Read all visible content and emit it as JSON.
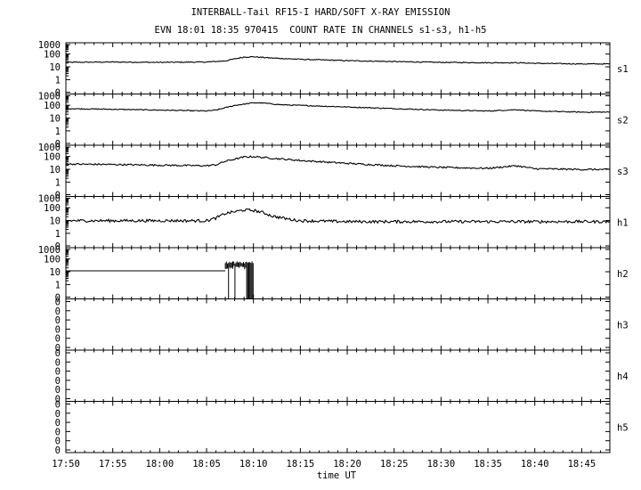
{
  "header": {
    "title": "INTERBALL-Tail RF15-I HARD/SOFT X-RAY EMISSION",
    "subtitle": "EVN 18:01 18:35 970415  COUNT RATE IN CHANNELS s1-s3, h1-h5"
  },
  "chart_data": {
    "type": "line",
    "title": "INTERBALL-Tail RF15-I HARD/SOFT X-RAY EMISSION",
    "subtitle": "EVN 18:01 18:35 970415  COUNT RATE IN CHANNELS s1-s3, h1-h5",
    "xlabel": "time UT",
    "x_ticks": [
      "17:50",
      "17:55",
      "18:00",
      "18:05",
      "18:10",
      "18:15",
      "18:20",
      "18:25",
      "18:30",
      "18:35",
      "18:40",
      "18:45"
    ],
    "x_range_minutes_ut": [
      "17:50",
      "18:48"
    ],
    "y_scale": "log",
    "y_ticks_log": [
      "1000",
      "100",
      "10",
      "1",
      "0"
    ],
    "y_ticks_zero": [
      "0",
      "0",
      "0",
      "0",
      "0",
      "0"
    ],
    "grid": false,
    "panels": [
      {
        "name": "s1",
        "mode": "log",
        "points": [
          [
            "17:50",
            30
          ],
          [
            "17:55",
            32
          ],
          [
            "18:00",
            30
          ],
          [
            "18:05",
            32
          ],
          [
            "18:07",
            40
          ],
          [
            "18:08",
            60
          ],
          [
            "18:09",
            85
          ],
          [
            "18:10",
            90
          ],
          [
            "18:12",
            70
          ],
          [
            "18:15",
            55
          ],
          [
            "18:20",
            42
          ],
          [
            "18:25",
            35
          ],
          [
            "18:30",
            30
          ],
          [
            "18:35",
            28
          ],
          [
            "18:38",
            28
          ],
          [
            "18:40",
            25
          ],
          [
            "18:45",
            22
          ],
          [
            "18:48",
            22
          ]
        ]
      },
      {
        "name": "s2",
        "mode": "log",
        "points": [
          [
            "17:50",
            80
          ],
          [
            "17:55",
            70
          ],
          [
            "18:00",
            60
          ],
          [
            "18:05",
            50
          ],
          [
            "18:06",
            60
          ],
          [
            "18:08",
            150
          ],
          [
            "18:10",
            250
          ],
          [
            "18:11",
            240
          ],
          [
            "18:13",
            170
          ],
          [
            "18:15",
            150
          ],
          [
            "18:20",
            110
          ],
          [
            "18:25",
            80
          ],
          [
            "18:30",
            60
          ],
          [
            "18:35",
            50
          ],
          [
            "18:38",
            65
          ],
          [
            "18:40",
            50
          ],
          [
            "18:45",
            40
          ],
          [
            "18:48",
            40
          ]
        ]
      },
      {
        "name": "s3",
        "mode": "log",
        "points": [
          [
            "17:50",
            35
          ],
          [
            "17:55",
            32
          ],
          [
            "18:00",
            28
          ],
          [
            "18:05",
            25
          ],
          [
            "18:06",
            30
          ],
          [
            "18:07",
            60
          ],
          [
            "18:09",
            140
          ],
          [
            "18:10",
            150
          ],
          [
            "18:12",
            110
          ],
          [
            "18:15",
            70
          ],
          [
            "18:20",
            40
          ],
          [
            "18:25",
            25
          ],
          [
            "18:30",
            18
          ],
          [
            "18:35",
            15
          ],
          [
            "18:38",
            25
          ],
          [
            "18:40",
            14
          ],
          [
            "18:45",
            12
          ],
          [
            "18:48",
            12
          ]
        ]
      },
      {
        "name": "h1",
        "mode": "log",
        "points": [
          [
            "17:50",
            12
          ],
          [
            "17:55",
            12
          ],
          [
            "18:00",
            12
          ],
          [
            "18:05",
            12
          ],
          [
            "18:06",
            20
          ],
          [
            "18:07",
            50
          ],
          [
            "18:08",
            70
          ],
          [
            "18:09",
            100
          ],
          [
            "18:10",
            90
          ],
          [
            "18:11",
            60
          ],
          [
            "18:12",
            30
          ],
          [
            "18:14",
            15
          ],
          [
            "18:15",
            12
          ],
          [
            "18:20",
            10
          ],
          [
            "18:30",
            10
          ],
          [
            "18:40",
            10
          ],
          [
            "18:45",
            10
          ],
          [
            "18:48",
            10
          ]
        ]
      },
      {
        "name": "h2",
        "mode": "log",
        "points": [
          [
            "17:50",
            15
          ],
          [
            "17:55",
            15
          ],
          [
            "18:00",
            15
          ],
          [
            "18:05",
            15
          ],
          [
            "18:07",
            15
          ],
          [
            "18:07",
            80
          ],
          [
            "18:08",
            0
          ],
          [
            "18:08",
            80
          ],
          [
            "18:09",
            0
          ],
          [
            "18:09",
            80
          ],
          [
            "18:10",
            0
          ]
        ]
      },
      {
        "name": "h3",
        "mode": "zero",
        "points": []
      },
      {
        "name": "h4",
        "mode": "zero",
        "points": []
      },
      {
        "name": "h5",
        "mode": "zero",
        "points": []
      }
    ]
  }
}
